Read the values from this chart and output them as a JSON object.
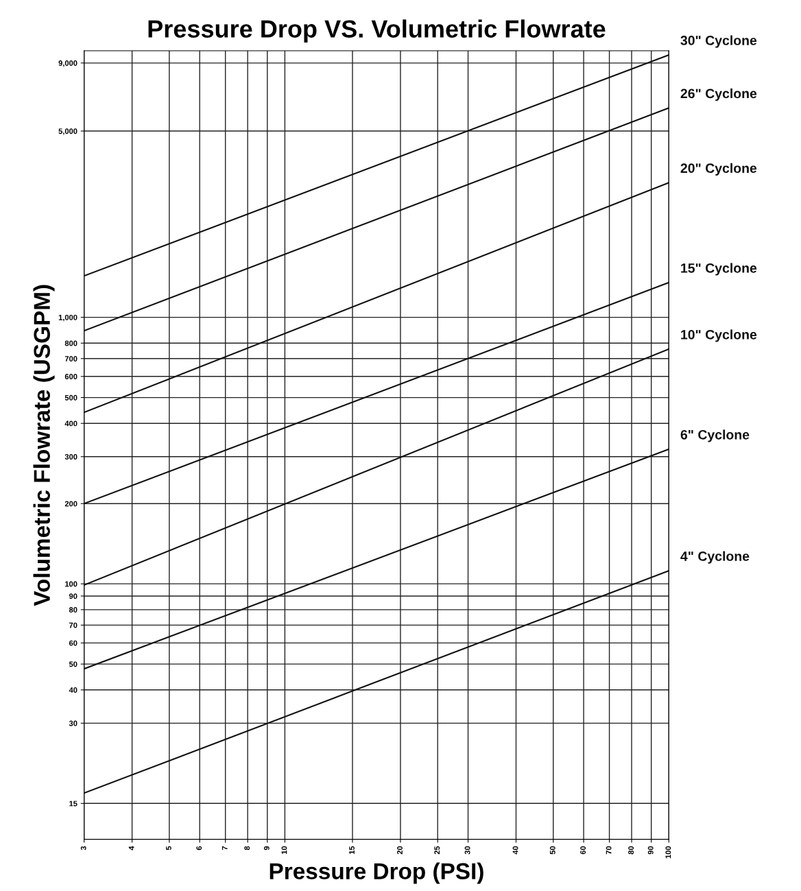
{
  "chart_data": {
    "type": "line",
    "title": "Pressure Drop VS. Volumetric Flowrate",
    "xlabel": "Pressure Drop (PSI)",
    "ylabel": "Volumetric Flowrate (USGPM)",
    "log": "xy",
    "grid": true,
    "legend": false,
    "x": [
      3,
      100
    ],
    "xlim": [
      3,
      100
    ],
    "xticks": [
      3,
      4,
      5,
      6,
      7,
      8,
      9,
      10,
      15,
      20,
      25,
      30,
      40,
      50,
      60,
      70,
      80,
      90,
      100
    ],
    "ylim": [
      11,
      10000
    ],
    "yticks": [
      15,
      30,
      40,
      50,
      60,
      70,
      80,
      90,
      100,
      200,
      300,
      400,
      500,
      600,
      700,
      800,
      {
        "value": 1000,
        "label": "1,000"
      },
      {
        "value": 5000,
        "label": "5,000"
      },
      {
        "value": 9000,
        "label": "9,000"
      }
    ],
    "series": [
      {
        "name": "30\" Cyclone",
        "color": "#111111",
        "values": [
          1430,
          9650
        ]
      },
      {
        "name": "26\" Cyclone",
        "color": "#111111",
        "values": [
          890,
          6100
        ]
      },
      {
        "name": "20\" Cyclone",
        "color": "#111111",
        "values": [
          440,
          3200
        ]
      },
      {
        "name": "15\" Cyclone",
        "color": "#111111",
        "values": [
          200,
          1350
        ]
      },
      {
        "name": "10\" Cyclone",
        "color": "#111111",
        "values": [
          99,
          760
        ]
      },
      {
        "name": "6\" Cyclone",
        "color": "#111111",
        "values": [
          48,
          320
        ]
      },
      {
        "name": "4\" Cyclone",
        "color": "#111111",
        "values": [
          16.4,
          112
        ]
      }
    ]
  }
}
